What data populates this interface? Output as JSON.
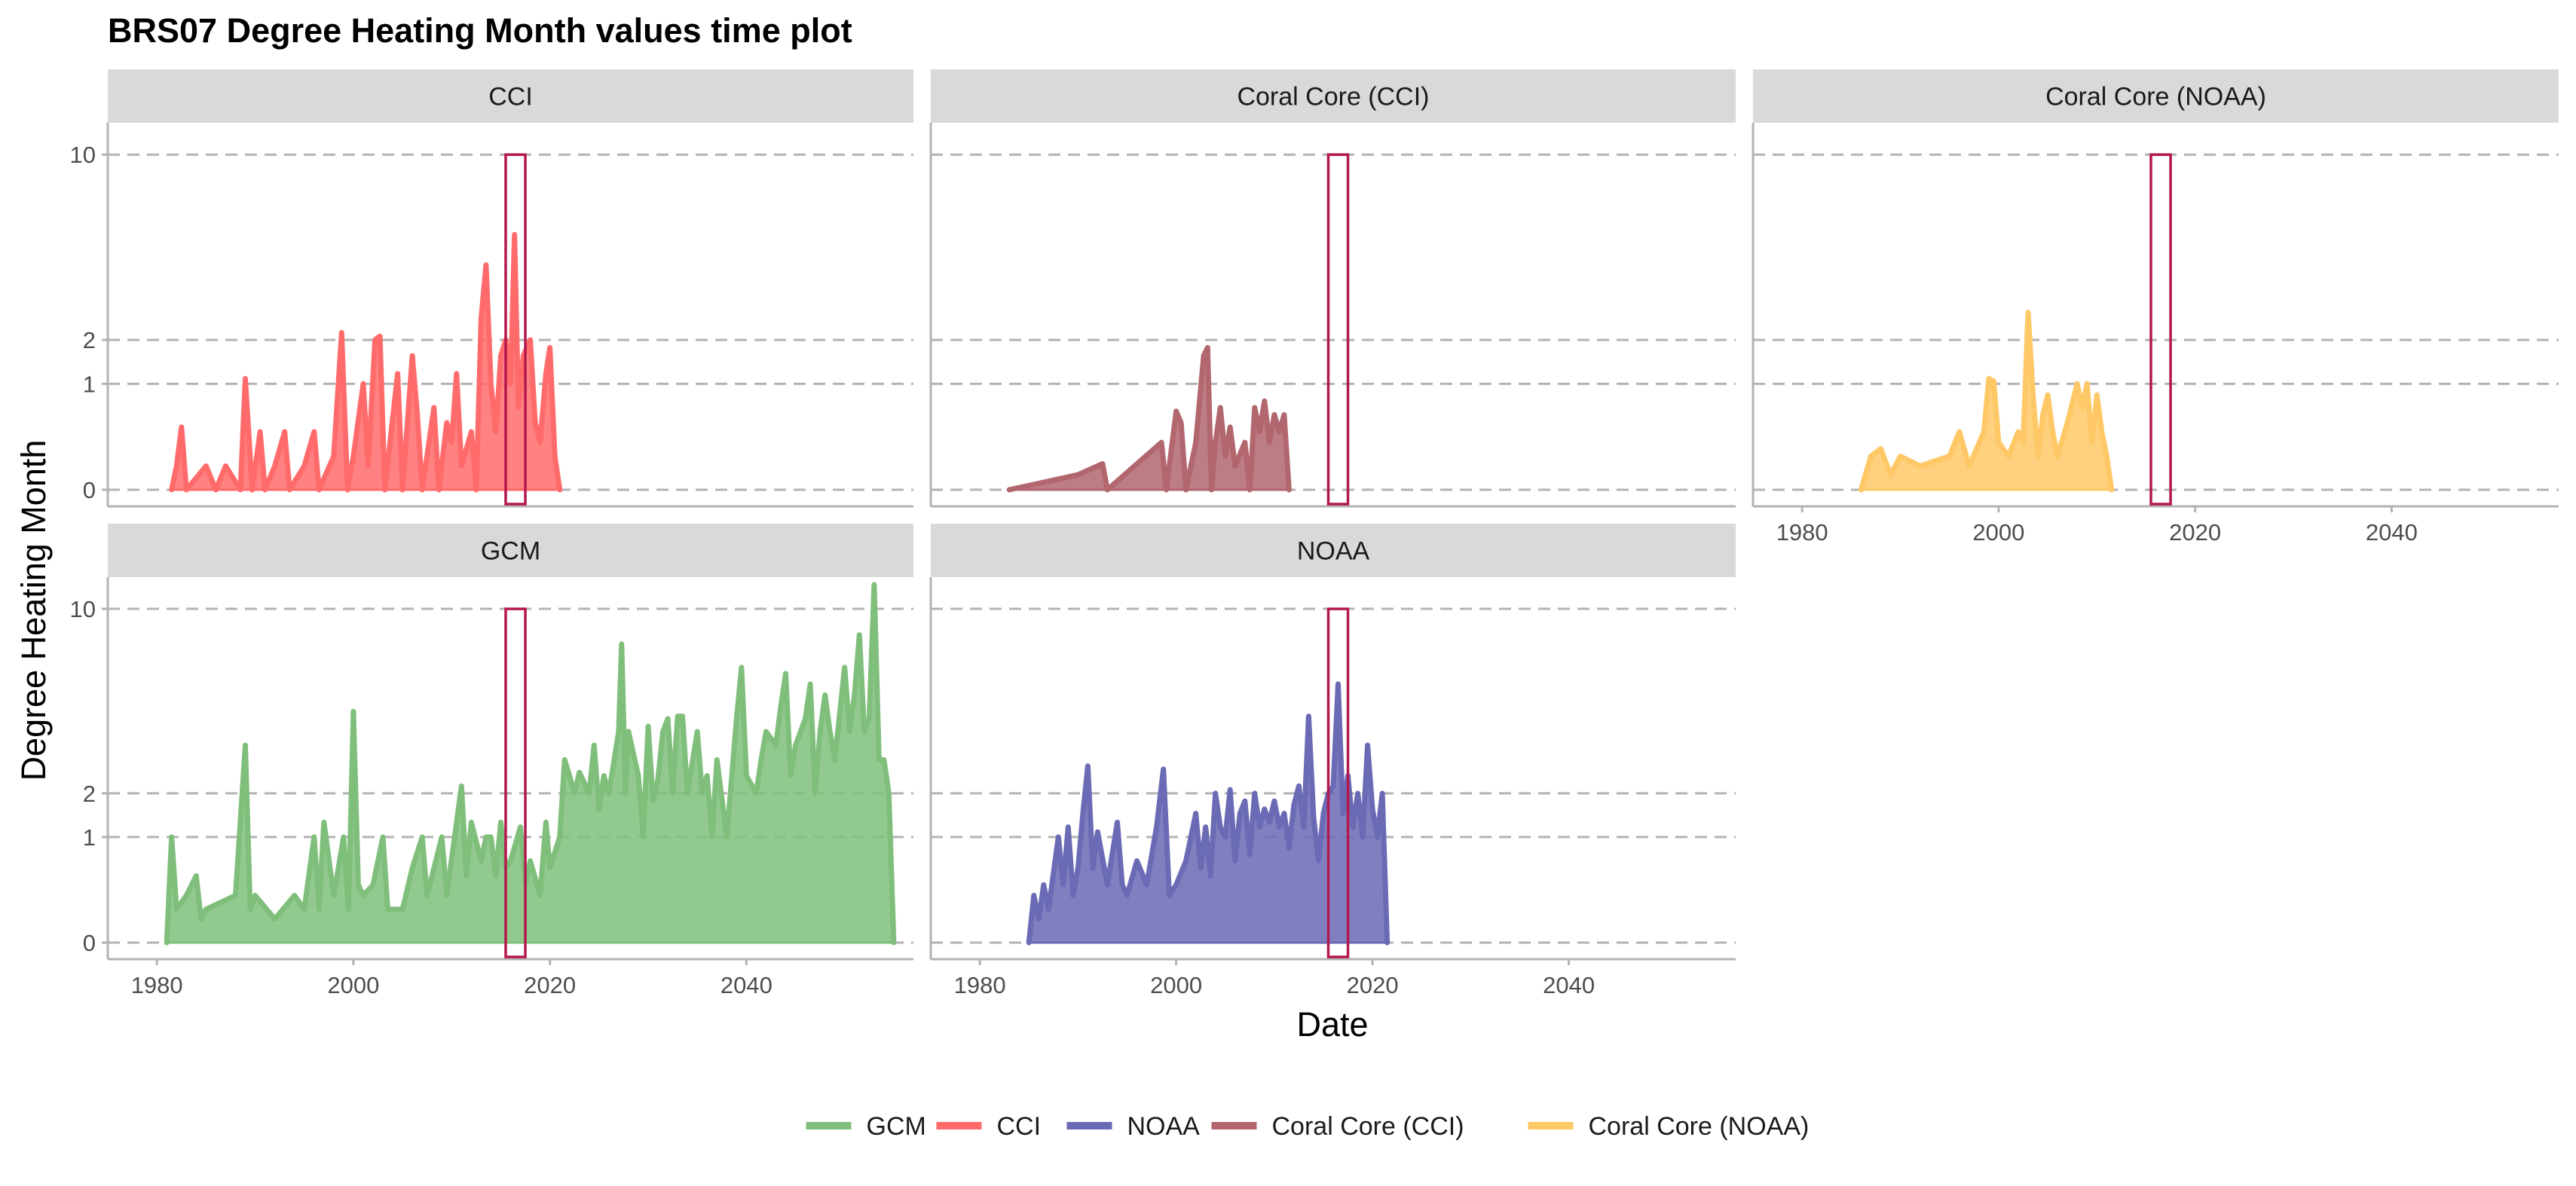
{
  "title": "BRS07 Degree Heating Month values time plot",
  "chart_data": {
    "type": "area",
    "title": "BRS07 Degree Heating Month values time plot",
    "xlabel": "Date",
    "ylabel": "Degree Heating Month",
    "y_scale": "square-root",
    "y_ticks": [
      0,
      1,
      2,
      10
    ],
    "y_range": [
      0,
      11.5
    ],
    "x_ticks": [
      1980,
      2000,
      2020,
      2040
    ],
    "x_range": [
      1975,
      2057
    ],
    "grid": "dashed horizontal lines at 0, 1, 2, 10",
    "highlight_window": {
      "from": 2015.5,
      "to": 2017.5,
      "y_max": 10,
      "color": "#B5174D"
    },
    "legend_position": "bottom",
    "legend": [
      "GCM",
      "CCI",
      "NOAA",
      "Coral Core (CCI)",
      "Coral Core (NOAA)"
    ],
    "colors": {
      "GCM": "#7FBF7B",
      "CCI": "#FF6B6B",
      "NOAA": "#6A6AB5",
      "Coral Core (CCI)": "#B2666E",
      "Coral Core (NOAA)": "#FFC866"
    },
    "panels": [
      {
        "label": "CCI",
        "series": "CCI",
        "points": [
          [
            1981.5,
            0
          ],
          [
            1982,
            0.05
          ],
          [
            1982.5,
            0.35
          ],
          [
            1983,
            0
          ],
          [
            1985,
            0.05
          ],
          [
            1986,
            0
          ],
          [
            1987,
            0.05
          ],
          [
            1988.5,
            0
          ],
          [
            1989,
            1.1
          ],
          [
            1989.7,
            0
          ],
          [
            1990.5,
            0.3
          ],
          [
            1991,
            0
          ],
          [
            1992,
            0.05
          ],
          [
            1993,
            0.3
          ],
          [
            1993.5,
            0
          ],
          [
            1995,
            0.05
          ],
          [
            1996,
            0.3
          ],
          [
            1996.5,
            0
          ],
          [
            1998,
            0.1
          ],
          [
            1998.8,
            2.2
          ],
          [
            1999.4,
            0
          ],
          [
            2000,
            0.1
          ],
          [
            2001,
            1
          ],
          [
            2001.5,
            0.05
          ],
          [
            2002.2,
            2.0
          ],
          [
            2002.7,
            2.1
          ],
          [
            2003.2,
            0
          ],
          [
            2004.5,
            1.2
          ],
          [
            2005,
            0
          ],
          [
            2006,
            1.6
          ],
          [
            2006.5,
            0.5
          ],
          [
            2007,
            0
          ],
          [
            2008.2,
            0.6
          ],
          [
            2008.7,
            0
          ],
          [
            2009.5,
            0.4
          ],
          [
            2010,
            0.2
          ],
          [
            2010.5,
            1.2
          ],
          [
            2011,
            0.05
          ],
          [
            2012,
            0.3
          ],
          [
            2012.5,
            0
          ],
          [
            2013,
            2.6
          ],
          [
            2013.5,
            4.5
          ],
          [
            2014,
            1
          ],
          [
            2014.5,
            0.3
          ],
          [
            2015,
            1.6
          ],
          [
            2015.5,
            2.0
          ],
          [
            2016,
            1.0
          ],
          [
            2016.4,
            5.8
          ],
          [
            2016.8,
            0.6
          ],
          [
            2017.3,
            1.6
          ],
          [
            2018,
            2.0
          ],
          [
            2018.5,
            0.4
          ],
          [
            2019,
            0.2
          ],
          [
            2019.6,
            1.2
          ],
          [
            2020,
            1.8
          ],
          [
            2020.5,
            0.1
          ],
          [
            2021,
            0
          ]
        ]
      },
      {
        "label": "Coral Core (CCI)",
        "series": "Coral Core (CCI)",
        "points": [
          [
            1983,
            0
          ],
          [
            1990,
            0.02
          ],
          [
            1992.5,
            0.06
          ],
          [
            1993,
            0
          ],
          [
            1998.5,
            0.2
          ],
          [
            1999,
            0
          ],
          [
            2000,
            0.55
          ],
          [
            2000.5,
            0.4
          ],
          [
            2001,
            0
          ],
          [
            2002,
            0.2
          ],
          [
            2002.8,
            1.6
          ],
          [
            2003.2,
            1.8
          ],
          [
            2003.6,
            0
          ],
          [
            2004,
            0.2
          ],
          [
            2004.5,
            0.6
          ],
          [
            2005,
            0.1
          ],
          [
            2005.5,
            0.35
          ],
          [
            2006,
            0.05
          ],
          [
            2007,
            0.2
          ],
          [
            2007.5,
            0
          ],
          [
            2008,
            0.6
          ],
          [
            2008.5,
            0.3
          ],
          [
            2009,
            0.7
          ],
          [
            2009.5,
            0.2
          ],
          [
            2010,
            0.5
          ],
          [
            2010.5,
            0.3
          ],
          [
            2011,
            0.5
          ],
          [
            2011.5,
            0
          ]
        ]
      },
      {
        "label": "Coral Core (NOAA)",
        "series": "Coral Core (NOAA)",
        "points": [
          [
            1986,
            0
          ],
          [
            1987,
            0.1
          ],
          [
            1988,
            0.15
          ],
          [
            1989,
            0.02
          ],
          [
            1990,
            0.1
          ],
          [
            1992,
            0.05
          ],
          [
            1995,
            0.1
          ],
          [
            1996,
            0.3
          ],
          [
            1997,
            0.05
          ],
          [
            1998.5,
            0.3
          ],
          [
            1999,
            1.1
          ],
          [
            1999.5,
            1.05
          ],
          [
            2000,
            0.2
          ],
          [
            2001,
            0.1
          ],
          [
            2002,
            0.3
          ],
          [
            2002.5,
            0.2
          ],
          [
            2003,
            2.8
          ],
          [
            2003.5,
            0.8
          ],
          [
            2004,
            0.1
          ],
          [
            2004.5,
            0.5
          ],
          [
            2005,
            0.8
          ],
          [
            2005.5,
            0.3
          ],
          [
            2006,
            0.1
          ],
          [
            2007,
            0.4
          ],
          [
            2008,
            1.0
          ],
          [
            2008.5,
            0.6
          ],
          [
            2009,
            1.0
          ],
          [
            2009.5,
            0.2
          ],
          [
            2010,
            0.8
          ],
          [
            2010.5,
            0.3
          ],
          [
            2011,
            0.1
          ],
          [
            2011.5,
            0
          ]
        ]
      },
      {
        "label": "GCM",
        "series": "GCM",
        "points": [
          [
            1981,
            0
          ],
          [
            1981.5,
            1.0
          ],
          [
            1982,
            0.1
          ],
          [
            1983,
            0.2
          ],
          [
            1984,
            0.4
          ],
          [
            1984.5,
            0.05
          ],
          [
            1985,
            0.1
          ],
          [
            1988,
            0.2
          ],
          [
            1989,
            3.5
          ],
          [
            1989.5,
            0.1
          ],
          [
            1990,
            0.2
          ],
          [
            1992,
            0.05
          ],
          [
            1994,
            0.2
          ],
          [
            1995,
            0.1
          ],
          [
            1996,
            1.0
          ],
          [
            1996.5,
            0.1
          ],
          [
            1997,
            1.3
          ],
          [
            1998,
            0.2
          ],
          [
            1999,
            1.0
          ],
          [
            1999.5,
            0.1
          ],
          [
            2000,
            4.8
          ],
          [
            2000.5,
            0.3
          ],
          [
            2001,
            0.2
          ],
          [
            2002,
            0.3
          ],
          [
            2003,
            1.0
          ],
          [
            2003.5,
            0.1
          ],
          [
            2005,
            0.1
          ],
          [
            2006,
            0.5
          ],
          [
            2007,
            1.0
          ],
          [
            2007.5,
            0.2
          ],
          [
            2009,
            1.0
          ],
          [
            2009.5,
            0.2
          ],
          [
            2011,
            2.2
          ],
          [
            2011.5,
            0.4
          ],
          [
            2012,
            1.3
          ],
          [
            2013,
            0.6
          ],
          [
            2013.5,
            1.0
          ],
          [
            2014,
            1.0
          ],
          [
            2014.5,
            0.4
          ],
          [
            2015,
            1.3
          ],
          [
            2015.5,
            0.5
          ],
          [
            2016,
            0.6
          ],
          [
            2017,
            1.2
          ],
          [
            2017.5,
            0.3
          ],
          [
            2018,
            0.6
          ],
          [
            2019,
            0.2
          ],
          [
            2019.6,
            1.3
          ],
          [
            2020,
            0.5
          ],
          [
            2021,
            1.0
          ],
          [
            2021.5,
            3.0
          ],
          [
            2022,
            2.5
          ],
          [
            2022.5,
            2.0
          ],
          [
            2023,
            2.6
          ],
          [
            2024,
            2.0
          ],
          [
            2024.5,
            3.5
          ],
          [
            2025,
            1.6
          ],
          [
            2025.5,
            2.5
          ],
          [
            2026,
            2.0
          ],
          [
            2027,
            4.0
          ],
          [
            2027.3,
            8.0
          ],
          [
            2027.7,
            2.0
          ],
          [
            2028,
            4.0
          ],
          [
            2029,
            2.5
          ],
          [
            2029.5,
            1.0
          ],
          [
            2030,
            4.2
          ],
          [
            2030.5,
            1.8
          ],
          [
            2031,
            2.4
          ],
          [
            2031.5,
            4.0
          ],
          [
            2032,
            4.5
          ],
          [
            2032.5,
            2.0
          ],
          [
            2033,
            4.6
          ],
          [
            2033.5,
            4.6
          ],
          [
            2034,
            2.0
          ],
          [
            2035,
            4.0
          ],
          [
            2035.5,
            2.0
          ],
          [
            2036,
            2.5
          ],
          [
            2036.5,
            1.0
          ],
          [
            2037,
            3.0
          ],
          [
            2038,
            1.0
          ],
          [
            2039,
            4.5
          ],
          [
            2039.5,
            6.8
          ],
          [
            2040,
            2.5
          ],
          [
            2041,
            2.0
          ],
          [
            2041.5,
            3.0
          ],
          [
            2042,
            4.0
          ],
          [
            2043,
            3.5
          ],
          [
            2043.5,
            5.0
          ],
          [
            2044,
            6.5
          ],
          [
            2044.5,
            2.5
          ],
          [
            2045,
            3.5
          ],
          [
            2046,
            4.5
          ],
          [
            2046.5,
            6.0
          ],
          [
            2047,
            2.0
          ],
          [
            2047.5,
            4.0
          ],
          [
            2048,
            5.5
          ],
          [
            2048.5,
            4.0
          ],
          [
            2049,
            3.0
          ],
          [
            2050,
            6.8
          ],
          [
            2050.5,
            4.0
          ],
          [
            2051,
            5.5
          ],
          [
            2051.5,
            8.5
          ],
          [
            2052,
            4.0
          ],
          [
            2052.5,
            4.5
          ],
          [
            2053,
            11.5
          ],
          [
            2053.5,
            3.0
          ],
          [
            2054,
            3.0
          ],
          [
            2054.5,
            2.0
          ],
          [
            2055,
            0
          ]
        ]
      },
      {
        "label": "NOAA",
        "series": "NOAA",
        "points": [
          [
            1985,
            0
          ],
          [
            1985.5,
            0.2
          ],
          [
            1986,
            0.05
          ],
          [
            1986.5,
            0.3
          ],
          [
            1987,
            0.1
          ],
          [
            1988,
            1.0
          ],
          [
            1988.5,
            0.3
          ],
          [
            1989,
            1.2
          ],
          [
            1989.5,
            0.2
          ],
          [
            1990,
            0.5
          ],
          [
            1990.5,
            1.5
          ],
          [
            1991,
            2.8
          ],
          [
            1991.5,
            0.5
          ],
          [
            1992,
            1.1
          ],
          [
            1993,
            0.3
          ],
          [
            1994,
            1.3
          ],
          [
            1994.5,
            0.3
          ],
          [
            1995,
            0.2
          ],
          [
            1996,
            0.6
          ],
          [
            1997,
            0.3
          ],
          [
            1998,
            1.2
          ],
          [
            1998.7,
            2.7
          ],
          [
            1999.3,
            0.2
          ],
          [
            2000,
            0.3
          ],
          [
            2001,
            0.6
          ],
          [
            2002,
            1.5
          ],
          [
            2002.5,
            0.5
          ],
          [
            2003,
            1.2
          ],
          [
            2003.5,
            0.4
          ],
          [
            2004,
            2.0
          ],
          [
            2004.5,
            1.2
          ],
          [
            2005,
            1.0
          ],
          [
            2005.5,
            2.1
          ],
          [
            2006,
            0.6
          ],
          [
            2006.5,
            1.5
          ],
          [
            2007,
            1.8
          ],
          [
            2007.5,
            0.7
          ],
          [
            2008,
            2.0
          ],
          [
            2008.5,
            1.2
          ],
          [
            2009,
            1.6
          ],
          [
            2009.5,
            1.3
          ],
          [
            2010,
            1.8
          ],
          [
            2010.5,
            1.2
          ],
          [
            2011,
            1.5
          ],
          [
            2011.5,
            0.8
          ],
          [
            2012,
            1.7
          ],
          [
            2012.5,
            2.2
          ],
          [
            2013,
            1.2
          ],
          [
            2013.5,
            4.6
          ],
          [
            2014,
            1.4
          ],
          [
            2014.5,
            0.6
          ],
          [
            2015,
            1.5
          ],
          [
            2015.5,
            2.0
          ],
          [
            2016,
            2.2
          ],
          [
            2016.5,
            6.0
          ],
          [
            2017,
            1.5
          ],
          [
            2017.5,
            2.5
          ],
          [
            2018,
            1.2
          ],
          [
            2018.5,
            2.0
          ],
          [
            2019,
            1.0
          ],
          [
            2019.5,
            3.5
          ],
          [
            2020,
            1.6
          ],
          [
            2020.5,
            1.0
          ],
          [
            2021,
            2.0
          ],
          [
            2021.5,
            0
          ]
        ]
      }
    ]
  }
}
